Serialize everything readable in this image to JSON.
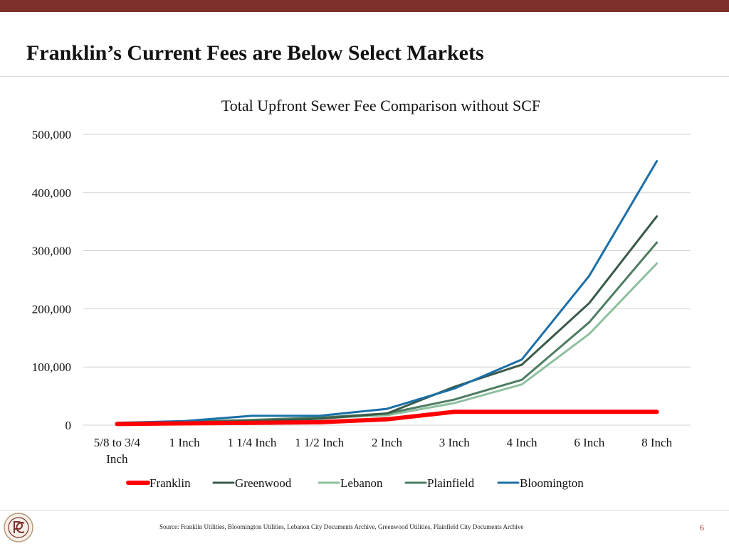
{
  "slide": {
    "title": "Franklin’s Current Fees are Below Select Markets",
    "source": "Source: Franklin Utilities, Bloomington Utilities, Lebanon City Documents Archive, Greenwood Utilities, Plainfield City Documents Archive",
    "page_number": "6"
  },
  "colors": {
    "top_bar": "#7b302b",
    "gridline": "#d0d0d0",
    "page_number": "#a0352b"
  },
  "chart_data": {
    "type": "line",
    "title": "Total Upfront Sewer Fee Comparison without SCF",
    "xlabel": "",
    "ylabel": "",
    "categories": [
      "5/8 to 3/4 Inch",
      "1 Inch",
      "1 1/4 Inch",
      "1 1/2 Inch",
      "2 Inch",
      "3 Inch",
      "4 Inch",
      "6 Inch",
      "8 Inch"
    ],
    "ylim": [
      0,
      500000
    ],
    "yticks": [
      0,
      100000,
      200000,
      300000,
      400000,
      500000
    ],
    "ytick_labels": [
      "0",
      "100,000",
      "200,000",
      "300,000",
      "400,000",
      "500,000"
    ],
    "grid": true,
    "legend_position": "bottom",
    "series": [
      {
        "name": "Franklin",
        "color": "#ff0000",
        "width": 6,
        "values": [
          2000,
          3000,
          4000,
          5000,
          10000,
          23000,
          23000,
          23000,
          23000
        ]
      },
      {
        "name": "Greenwood",
        "color": "#3a5a48",
        "width": 3,
        "values": [
          3000,
          5000,
          7000,
          11000,
          20000,
          66000,
          104000,
          210000,
          359000
        ]
      },
      {
        "name": "Lebanon",
        "color": "#8fbf9f",
        "width": 3,
        "values": [
          3000,
          6000,
          8000,
          12000,
          17000,
          38000,
          70000,
          157000,
          278000
        ]
      },
      {
        "name": "Plainfield",
        "color": "#4e7d62",
        "width": 3,
        "values": [
          3000,
          6000,
          9000,
          13000,
          20000,
          44000,
          78000,
          177000,
          314000
        ]
      },
      {
        "name": "Bloomington",
        "color": "#1a6fa8",
        "width": 3,
        "values": [
          4000,
          7000,
          16000,
          16000,
          28000,
          63000,
          113000,
          257000,
          454000
        ]
      }
    ]
  }
}
